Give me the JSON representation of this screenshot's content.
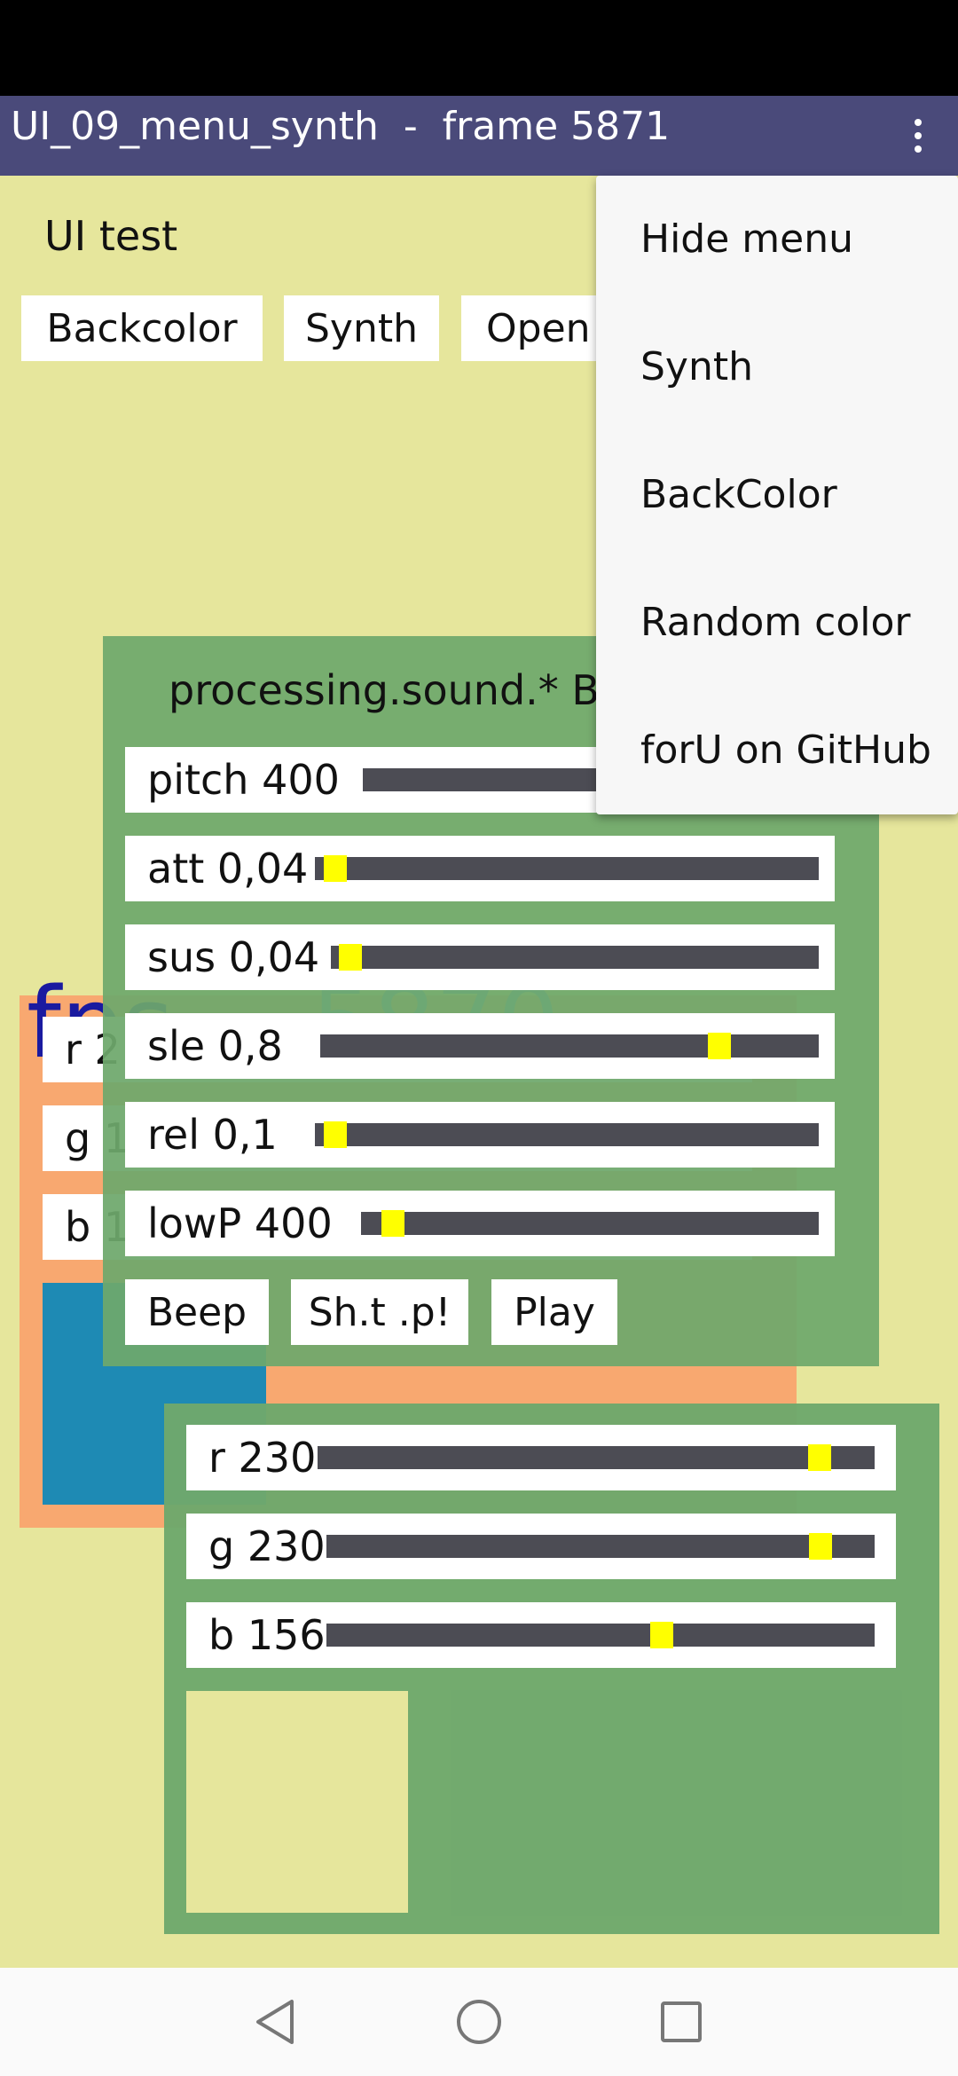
{
  "app_bar": {
    "title": "UI_09_menu_synth  -  frame 5871",
    "overflow_icon": "more-vert-icon"
  },
  "canvas": {
    "heading": "UI test",
    "buttons": [
      {
        "label": "Backcolor"
      },
      {
        "label": "Synth"
      },
      {
        "label": "Open"
      }
    ],
    "orange_panel": {
      "rows": [
        {
          "label": "r 2"
        },
        {
          "label": "g 1"
        },
        {
          "label": "b 1"
        }
      ],
      "fps_text": "fps",
      "fps_value": "5870",
      "swatch_color": "#1e8ab4"
    },
    "synth_panel": {
      "title": "processing.sound.* Be",
      "sliders": [
        {
          "label": "pitch 400",
          "value": 0.69
        },
        {
          "label": "att 0,04",
          "value": 0.04
        },
        {
          "label": "sus 0,04",
          "value": 0.04
        },
        {
          "label": "sle 0,8",
          "value": 0.8
        },
        {
          "label": "rel 0,1",
          "value": 0.04
        },
        {
          "label": "lowP 400",
          "value": 0.07
        }
      ],
      "buttons": [
        {
          "label": "Beep"
        },
        {
          "label": "Sh.t .p!"
        },
        {
          "label": "Play"
        }
      ]
    },
    "color_panel": {
      "sliders": [
        {
          "label": "r 230",
          "value": 230,
          "max": 255
        },
        {
          "label": "g 230",
          "value": 230,
          "max": 255
        },
        {
          "label": "b 156",
          "value": 156,
          "max": 255
        }
      ],
      "swatch_color": "#e6e69c"
    }
  },
  "menu": {
    "items": [
      {
        "label": "Hide menu"
      },
      {
        "label": "Synth"
      },
      {
        "label": "BackColor"
      },
      {
        "label": "Random color"
      },
      {
        "label": "forU on GitHub"
      }
    ]
  },
  "nav_bar": {
    "back_icon": "back-triangle-icon",
    "home_icon": "home-circle-icon",
    "recents_icon": "recents-square-icon"
  },
  "colors": {
    "app_bar": "#4a4a7a",
    "canvas": "#e6e69c",
    "panel_green": "#72a86e",
    "panel_orange": "#f8a870",
    "slider_track": "#4c4c54",
    "slider_knob": "#ffff00"
  }
}
